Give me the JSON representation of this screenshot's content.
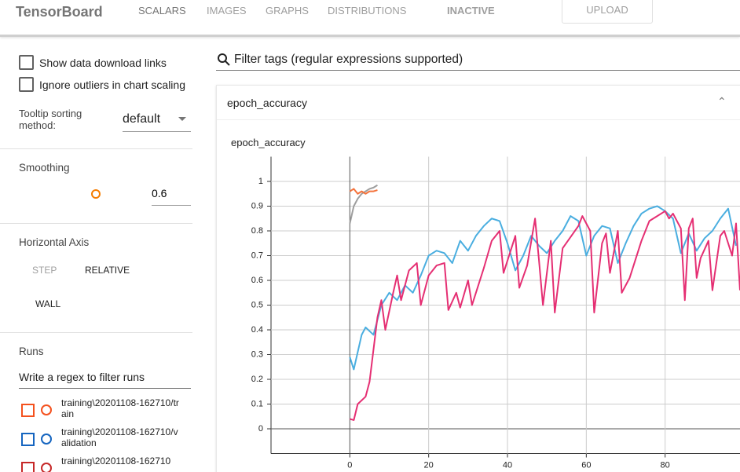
{
  "header": {
    "brand": "TensorBoard",
    "tabs": [
      "SCALARS",
      "IMAGES",
      "GRAPHS",
      "DISTRIBUTIONS"
    ],
    "status": "INACTIVE",
    "upload": "UPLOAD"
  },
  "sidebar": {
    "checkboxes": [
      "Show data download links",
      "Ignore outliers in chart scaling"
    ],
    "tooltip": {
      "label": "Tooltip sorting method:",
      "value": "default"
    },
    "smoothing": {
      "label": "Smoothing",
      "value": 0.6
    },
    "horizontal_axis": {
      "label": "Horizontal Axis",
      "options": [
        "STEP",
        "RELATIVE",
        "WALL"
      ]
    },
    "runs": {
      "label": "Runs",
      "filter": "Write a regex to filter runs",
      "items": [
        {
          "name": "training\\20201108-162710/train",
          "color": "#f4511e"
        },
        {
          "name": "training\\20201108-162710/validation",
          "color": "#1565c0"
        },
        {
          "name": "training\\20201108-162710",
          "color": "#c62828"
        }
      ]
    }
  },
  "main": {
    "filter": "Filter tags (regular expressions supported)",
    "card": "epoch_accuracy"
  },
  "chart_data": {
    "type": "line",
    "title": "epoch_accuracy",
    "xlim": [
      -20,
      99
    ],
    "ylim": [
      -0.1,
      1.1
    ],
    "xticks": [
      0,
      20,
      40,
      60,
      80
    ],
    "yticks": [
      0,
      0.1,
      0.2,
      0.3,
      0.4,
      0.5,
      0.6,
      0.7,
      0.8,
      0.9,
      1
    ],
    "grid": true,
    "series": [
      {
        "color": "#9e9e9e",
        "x": [
          0,
          1,
          2,
          3,
          4,
          5,
          6,
          7
        ],
        "values": [
          0.83,
          0.9,
          0.93,
          0.95,
          0.96,
          0.97,
          0.975,
          0.985
        ]
      },
      {
        "color": "#f4733c",
        "x": [
          0,
          1,
          2,
          3,
          4,
          5,
          6,
          7
        ],
        "values": [
          0.96,
          0.97,
          0.95,
          0.96,
          0.95,
          0.96,
          0.96,
          0.965
        ]
      },
      {
        "color": "#4aaee0",
        "x": [
          0,
          1,
          3,
          4,
          6,
          8,
          10,
          12,
          14,
          16,
          18,
          20,
          22,
          24,
          26,
          28,
          30,
          32,
          34,
          36,
          38,
          40,
          42,
          44,
          46,
          48,
          50,
          52,
          54,
          56,
          58,
          60,
          62,
          64,
          66,
          68,
          70,
          72,
          74,
          76,
          78,
          80,
          82,
          84,
          86,
          88,
          90,
          92,
          94,
          96,
          98
        ],
        "values": [
          0.29,
          0.24,
          0.38,
          0.41,
          0.38,
          0.5,
          0.55,
          0.52,
          0.58,
          0.55,
          0.62,
          0.7,
          0.72,
          0.71,
          0.67,
          0.76,
          0.72,
          0.78,
          0.82,
          0.85,
          0.84,
          0.75,
          0.64,
          0.7,
          0.78,
          0.74,
          0.71,
          0.76,
          0.8,
          0.86,
          0.84,
          0.7,
          0.78,
          0.82,
          0.81,
          0.67,
          0.75,
          0.82,
          0.87,
          0.89,
          0.9,
          0.88,
          0.85,
          0.71,
          0.79,
          0.72,
          0.77,
          0.8,
          0.85,
          0.89,
          0.74
        ]
      },
      {
        "color": "#e52f73",
        "x": [
          0,
          1,
          2,
          4,
          5,
          7,
          8,
          9,
          11,
          12,
          13,
          15,
          17,
          18,
          20,
          22,
          24,
          25,
          27,
          28,
          30,
          31,
          34,
          36,
          38,
          39,
          42,
          43,
          45,
          47,
          48,
          49,
          51,
          52,
          54,
          58,
          59,
          61,
          62,
          64,
          65,
          66,
          68,
          69,
          71,
          74,
          76,
          78,
          80,
          81,
          82,
          84,
          85,
          86,
          87,
          88,
          89,
          91,
          92,
          94,
          95,
          97,
          98,
          99
        ],
        "values": [
          0.04,
          0.035,
          0.1,
          0.13,
          0.19,
          0.45,
          0.52,
          0.4,
          0.55,
          0.62,
          0.52,
          0.64,
          0.67,
          0.5,
          0.62,
          0.66,
          0.67,
          0.48,
          0.55,
          0.49,
          0.6,
          0.5,
          0.65,
          0.76,
          0.8,
          0.63,
          0.78,
          0.57,
          0.66,
          0.85,
          0.68,
          0.5,
          0.76,
          0.47,
          0.73,
          0.82,
          0.86,
          0.8,
          0.47,
          0.75,
          0.79,
          0.63,
          0.8,
          0.55,
          0.61,
          0.76,
          0.84,
          0.86,
          0.88,
          0.85,
          0.87,
          0.81,
          0.52,
          0.81,
          0.85,
          0.61,
          0.69,
          0.76,
          0.56,
          0.78,
          0.8,
          0.7,
          0.83,
          0.56
        ]
      }
    ]
  }
}
